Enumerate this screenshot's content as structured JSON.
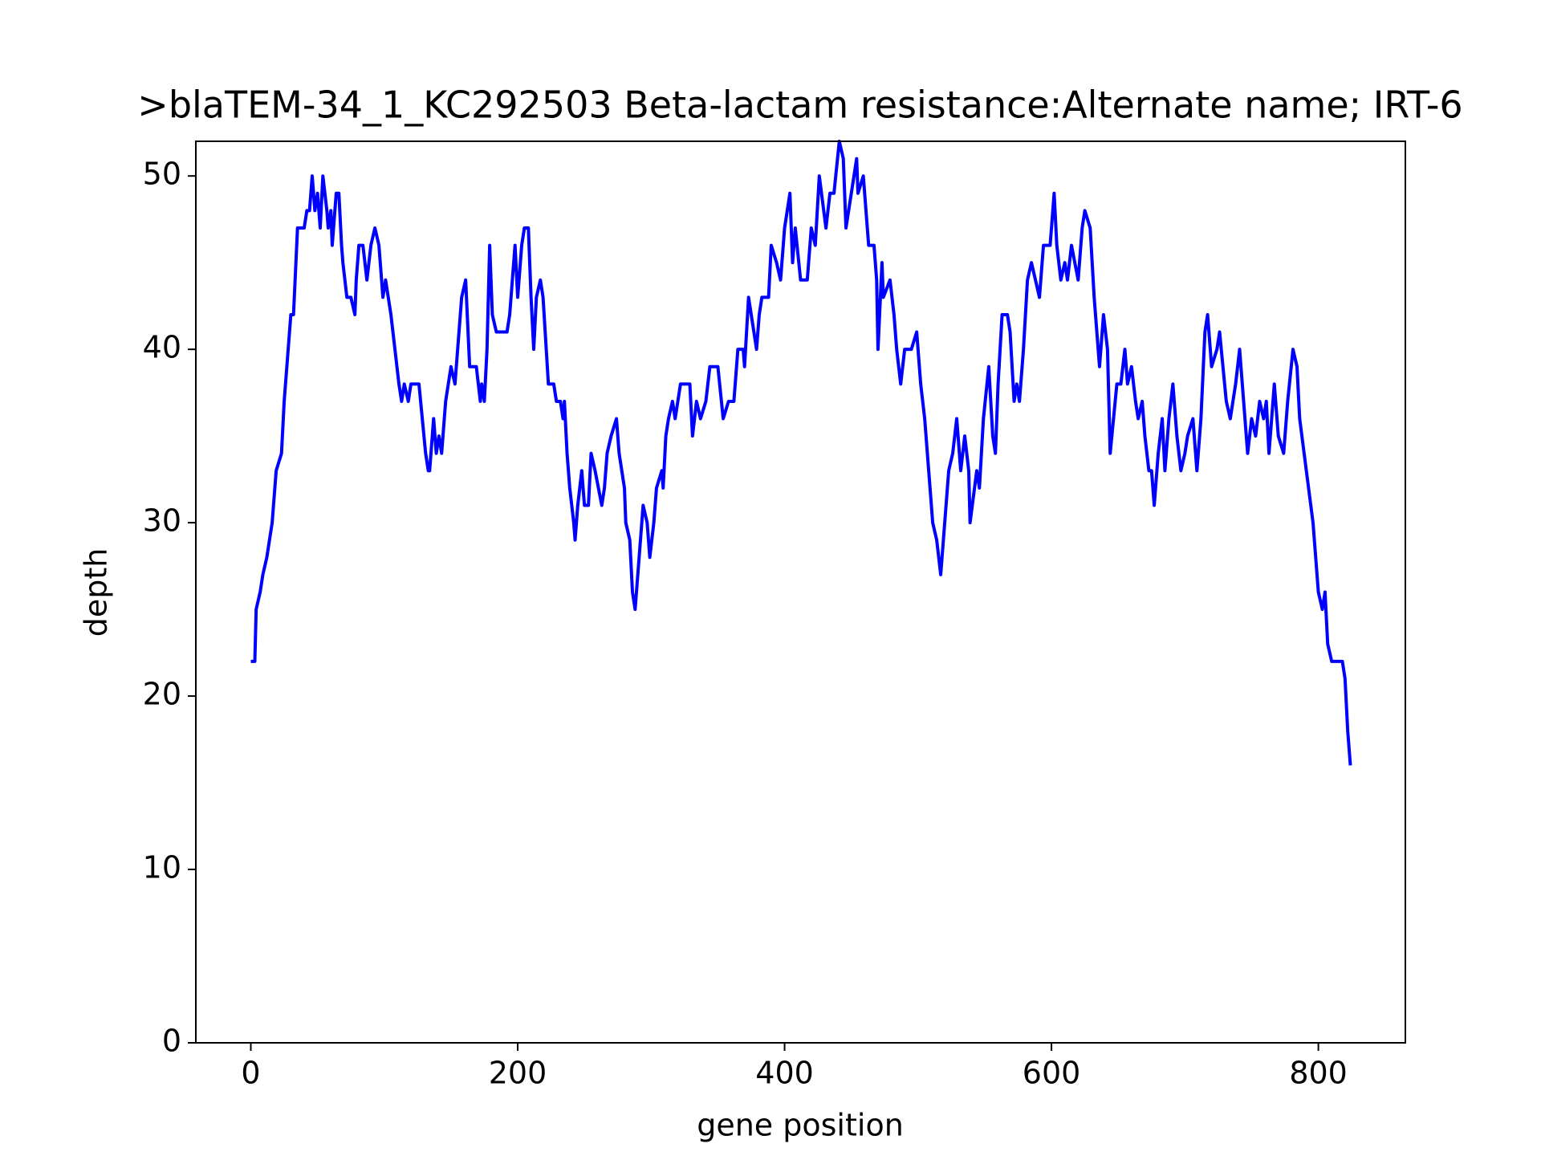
{
  "chart_data": {
    "type": "line",
    "title": ">blaTEM-34_1_KC292503 Beta-lactam resistance:Alternate name; IRT-6",
    "xlabel": "gene position",
    "ylabel": "depth",
    "xlim": [
      -41.2,
      865.2
    ],
    "ylim": [
      0,
      52
    ],
    "xticks": [
      0,
      200,
      400,
      600,
      800
    ],
    "yticks": [
      0,
      10,
      20,
      30,
      40,
      50
    ],
    "x": [
      0,
      3,
      4,
      7,
      9,
      12,
      16,
      19,
      23,
      25,
      28,
      30,
      32,
      35,
      40,
      42,
      44,
      46,
      48,
      50,
      52,
      54,
      57,
      58,
      60,
      61,
      64,
      66,
      68,
      69,
      72,
      75,
      78,
      79,
      81,
      84,
      87,
      90,
      93,
      96,
      99,
      101,
      105,
      108,
      111,
      113,
      115,
      118,
      120,
      126,
      131,
      133,
      134,
      137,
      139,
      141,
      143,
      146,
      148,
      150,
      153,
      156,
      158,
      161,
      164,
      169,
      172,
      173,
      175,
      177,
      179,
      181,
      184,
      192,
      194,
      196,
      198,
      200,
      203,
      205,
      208,
      210,
      212,
      214,
      217,
      219,
      223,
      227,
      229,
      232,
      234,
      235,
      237,
      239,
      242,
      243,
      245,
      248,
      250,
      253,
      255,
      258,
      263,
      265,
      267,
      270,
      274,
      276,
      280,
      281,
      284,
      286,
      288,
      290,
      294,
      297,
      299,
      302,
      304,
      308,
      309,
      311,
      313,
      316,
      318,
      322,
      329,
      331,
      334,
      337,
      341,
      344,
      350,
      354,
      358,
      362,
      364,
      365,
      369,
      370,
      373,
      377,
      379,
      381,
      383,
      388,
      390,
      394,
      397,
      400,
      404,
      406,
      408,
      412,
      417,
      420,
      423,
      426,
      431,
      434,
      437,
      441,
      444,
      446,
      450,
      454,
      455,
      459,
      463,
      467,
      469,
      470,
      473,
      474,
      479,
      482,
      484,
      487,
      490,
      495,
      499,
      502,
      505,
      508,
      511,
      514,
      517,
      521,
      523,
      526,
      529,
      532,
      535,
      538,
      539,
      544,
      546,
      549,
      553,
      556,
      558,
      560,
      563,
      567,
      569,
      572,
      574,
      576,
      579,
      582,
      585,
      588,
      591,
      594,
      599,
      602,
      604,
      607,
      610,
      612,
      615,
      620,
      623,
      625,
      629,
      632,
      634,
      636,
      639,
      642,
      644,
      649,
      652,
      655,
      657,
      660,
      663,
      665,
      668,
      670,
      673,
      675,
      677,
      680,
      683,
      685,
      688,
      691,
      694,
      697,
      700,
      702,
      706,
      709,
      712,
      715,
      717,
      720,
      724,
      726,
      731,
      734,
      738,
      741,
      744,
      747,
      750,
      753,
      756,
      759,
      761,
      763,
      767,
      770,
      774,
      777,
      781,
      784,
      786,
      791,
      796,
      800,
      803,
      805,
      807,
      810,
      818,
      820,
      822,
      824
    ],
    "series": [
      {
        "name": "depth",
        "color": "#0000ff",
        "values": [
          22,
          22,
          25,
          26,
          27,
          28,
          30,
          33,
          34,
          37,
          40,
          42,
          42,
          47,
          47,
          48,
          48,
          50,
          48,
          49,
          47,
          50,
          48,
          47,
          48,
          46,
          49,
          49,
          46,
          45,
          43,
          43,
          42,
          44,
          46,
          46,
          44,
          46,
          47,
          46,
          43,
          44,
          42,
          40,
          38,
          37,
          38,
          37,
          38,
          38,
          34,
          33,
          33,
          36,
          34,
          35,
          34,
          37,
          38,
          39,
          38,
          41,
          43,
          44,
          39,
          39,
          37,
          38,
          37,
          40,
          46,
          42,
          41,
          41,
          42,
          44,
          46,
          43,
          46,
          47,
          47,
          43,
          40,
          43,
          44,
          43,
          38,
          38,
          37,
          37,
          36,
          37,
          34,
          32,
          30,
          29,
          31,
          33,
          31,
          31,
          34,
          33,
          31,
          32,
          34,
          35,
          36,
          34,
          32,
          30,
          29,
          26,
          25,
          27,
          31,
          30,
          28,
          30,
          32,
          33,
          32,
          35,
          36,
          37,
          36,
          38,
          38,
          35,
          37,
          36,
          37,
          39,
          39,
          36,
          37,
          37,
          39,
          40,
          40,
          39,
          43,
          41,
          40,
          42,
          43,
          43,
          46,
          45,
          44,
          47,
          49,
          45,
          47,
          44,
          44,
          47,
          46,
          50,
          47,
          49,
          49,
          52,
          51,
          47,
          49,
          51,
          49,
          50,
          46,
          46,
          44,
          40,
          45,
          43,
          44,
          42,
          40,
          38,
          40,
          40,
          41,
          38,
          36,
          33,
          30,
          29,
          27,
          31,
          33,
          34,
          36,
          33,
          35,
          33,
          30,
          33,
          32,
          36,
          39,
          35,
          34,
          38,
          42,
          42,
          41,
          37,
          38,
          37,
          40,
          44,
          45,
          44,
          43,
          46,
          46,
          49,
          46,
          44,
          45,
          44,
          46,
          44,
          47,
          48,
          47,
          43,
          41,
          39,
          42,
          40,
          34,
          38,
          38,
          40,
          38,
          39,
          37,
          36,
          37,
          35,
          33,
          33,
          31,
          34,
          36,
          33,
          36,
          38,
          35,
          33,
          34,
          35,
          36,
          33,
          36,
          41,
          42,
          39,
          40,
          41,
          37,
          36,
          38,
          40,
          37,
          34,
          36,
          35,
          37,
          36,
          37,
          34,
          38,
          35,
          34,
          37,
          40,
          39,
          36,
          33,
          30,
          26,
          25,
          26,
          23,
          22,
          22,
          21,
          18,
          16
        ]
      }
    ]
  }
}
